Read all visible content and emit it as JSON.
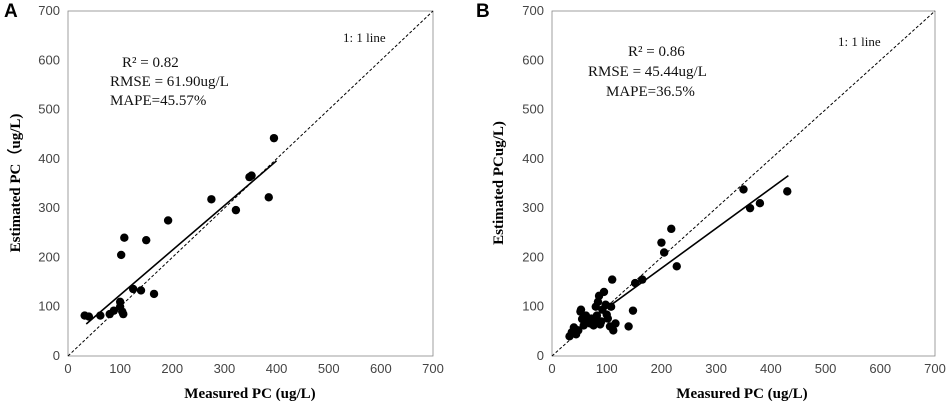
{
  "chart_data": [
    {
      "type": "scatter",
      "panel_label": "A",
      "xlabel": "Measured PC (ug/L)",
      "ylabel": "Estimated  PC（ug/L)",
      "xlim": [
        0,
        700
      ],
      "ylim": [
        0,
        700
      ],
      "xticks": [
        "0",
        "100",
        "200",
        "300",
        "400",
        "500",
        "600",
        "700"
      ],
      "yticks": [
        "0",
        "100",
        "200",
        "300",
        "400",
        "500",
        "600",
        "700"
      ],
      "grid": false,
      "annotations": [
        "R² = 0.82",
        "RMSE = 61.90ug/L",
        "MAPE=45.57%"
      ],
      "reference_line_label": "1: 1 line",
      "reference_line": [
        [
          0,
          0
        ],
        [
          700,
          700
        ]
      ],
      "fit_line": [
        [
          35,
          65
        ],
        [
          400,
          396
        ]
      ],
      "points": [
        [
          32,
          82
        ],
        [
          40,
          80
        ],
        [
          62,
          82
        ],
        [
          80,
          85
        ],
        [
          88,
          92
        ],
        [
          100,
          100
        ],
        [
          100,
          110
        ],
        [
          104,
          90
        ],
        [
          106,
          85
        ],
        [
          102,
          205
        ],
        [
          108,
          240
        ],
        [
          125,
          136
        ],
        [
          140,
          133
        ],
        [
          150,
          235
        ],
        [
          165,
          126
        ],
        [
          192,
          275
        ],
        [
          275,
          318
        ],
        [
          322,
          296
        ],
        [
          348,
          363
        ],
        [
          352,
          366
        ],
        [
          385,
          322
        ],
        [
          395,
          442
        ]
      ]
    },
    {
      "type": "scatter",
      "panel_label": "B",
      "xlabel": "Measured PC (ug/L)",
      "ylabel": "Estimated PCug/L)",
      "xlim": [
        0,
        700
      ],
      "ylim": [
        0,
        700
      ],
      "xticks": [
        "0",
        "100",
        "200",
        "300",
        "400",
        "500",
        "600",
        "700"
      ],
      "yticks": [
        "0",
        "100",
        "200",
        "300",
        "400",
        "500",
        "600",
        "700"
      ],
      "grid": false,
      "annotations": [
        "R² = 0.86",
        "RMSE = 45.44ug/L",
        "MAPE=36.5%"
      ],
      "reference_line_label": "1: 1 line",
      "reference_line": [
        [
          0,
          0
        ],
        [
          700,
          700
        ]
      ],
      "fit_line": [
        [
          32,
          42
        ],
        [
          432,
          366
        ]
      ],
      "points": [
        [
          32,
          40
        ],
        [
          36,
          48
        ],
        [
          40,
          58
        ],
        [
          44,
          44
        ],
        [
          48,
          52
        ],
        [
          52,
          90
        ],
        [
          53,
          94
        ],
        [
          55,
          75
        ],
        [
          58,
          62
        ],
        [
          62,
          82
        ],
        [
          66,
          70
        ],
        [
          70,
          66
        ],
        [
          72,
          76
        ],
        [
          76,
          62
        ],
        [
          78,
          70
        ],
        [
          80,
          100
        ],
        [
          82,
          82
        ],
        [
          84,
          110
        ],
        [
          86,
          122
        ],
        [
          88,
          64
        ],
        [
          90,
          70
        ],
        [
          92,
          94
        ],
        [
          95,
          130
        ],
        [
          98,
          104
        ],
        [
          100,
          84
        ],
        [
          102,
          76
        ],
        [
          106,
          60
        ],
        [
          108,
          100
        ],
        [
          110,
          155
        ],
        [
          112,
          52
        ],
        [
          116,
          66
        ],
        [
          140,
          60
        ],
        [
          148,
          92
        ],
        [
          152,
          148
        ],
        [
          165,
          155
        ],
        [
          200,
          230
        ],
        [
          205,
          210
        ],
        [
          218,
          258
        ],
        [
          228,
          182
        ],
        [
          350,
          338
        ],
        [
          362,
          300
        ],
        [
          380,
          310
        ],
        [
          430,
          334
        ]
      ]
    }
  ]
}
